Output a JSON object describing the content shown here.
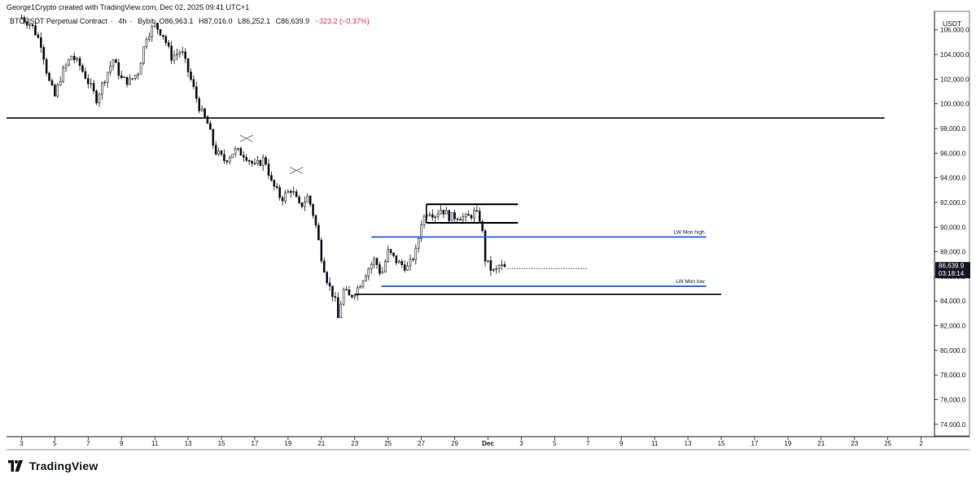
{
  "header": {
    "credit": "George1Crypto created with TradingView.com, Dec 02, 2025 09:41 UTC+1"
  },
  "symbol": {
    "name": "BTCUSDT Perpetual Contract",
    "interval": "4h",
    "exchange": "Bybit",
    "open": "O86,963.1",
    "high": "H87,016.0",
    "low": "L86,252.1",
    "close": "C86,639.9",
    "change": "−323.2 (−0.37%)",
    "change_color": "#f23645"
  },
  "brand": {
    "name": "TradingView"
  },
  "chart_data": {
    "type": "candlestick",
    "currency": "USDT",
    "y_ticks": [
      "106,000.0",
      "104,000.0",
      "102,000.0",
      "100,000.0",
      "98,000.0",
      "96,000.0",
      "94,000.0",
      "92,000.0",
      "90,000.0",
      "88,000.0",
      "86,000.0",
      "84,000.0",
      "82,000.0",
      "80,000.0",
      "78,000.0",
      "76,000.0",
      "74,000.0"
    ],
    "ylim": [
      73000,
      107500
    ],
    "x_ticks": [
      {
        "day": 3,
        "label": "3"
      },
      {
        "day": 5,
        "label": "5"
      },
      {
        "day": 7,
        "label": "7"
      },
      {
        "day": 9,
        "label": "9"
      },
      {
        "day": 11,
        "label": "11"
      },
      {
        "day": 13,
        "label": "13"
      },
      {
        "day": 15,
        "label": "15"
      },
      {
        "day": 17,
        "label": "17"
      },
      {
        "day": 19,
        "label": "19"
      },
      {
        "day": 21,
        "label": "21"
      },
      {
        "day": 23,
        "label": "23"
      },
      {
        "day": 25,
        "label": "25"
      },
      {
        "day": 27,
        "label": "27"
      },
      {
        "day": 29,
        "label": "29"
      },
      {
        "day": 31,
        "label": "Dec"
      },
      {
        "day": 33,
        "label": "3"
      },
      {
        "day": 35,
        "label": "5"
      },
      {
        "day": 37,
        "label": "7"
      },
      {
        "day": 39,
        "label": "9"
      },
      {
        "day": 41,
        "label": "11"
      },
      {
        "day": 43,
        "label": "13"
      },
      {
        "day": 45,
        "label": "15"
      },
      {
        "day": 47,
        "label": "17"
      },
      {
        "day": 49,
        "label": "19"
      },
      {
        "day": 51,
        "label": "21"
      },
      {
        "day": 53,
        "label": "23"
      },
      {
        "day": 55,
        "label": "25"
      },
      {
        "day": 57,
        "label": "2"
      }
    ],
    "xlim": [
      2.1,
      57.8
    ],
    "price_path": [
      [
        3.0,
        107000
      ],
      [
        3.6,
        106400
      ],
      [
        4.2,
        104800
      ],
      [
        4.6,
        102000
      ],
      [
        5.0,
        100600
      ],
      [
        5.4,
        102400
      ],
      [
        6.0,
        103900
      ],
      [
        6.5,
        103100
      ],
      [
        7.0,
        101800
      ],
      [
        7.5,
        100400
      ],
      [
        8.0,
        102100
      ],
      [
        8.5,
        103600
      ],
      [
        9.0,
        102000
      ],
      [
        9.5,
        101800
      ],
      [
        10.0,
        102600
      ],
      [
        10.5,
        105500
      ],
      [
        11.0,
        106400
      ],
      [
        11.5,
        105600
      ],
      [
        12.0,
        103800
      ],
      [
        12.6,
        104300
      ],
      [
        13.2,
        101800
      ],
      [
        13.7,
        99600
      ],
      [
        14.2,
        98300
      ],
      [
        14.6,
        96200
      ],
      [
        15.2,
        95400
      ],
      [
        15.8,
        96200
      ],
      [
        16.4,
        95900
      ],
      [
        17.0,
        94900
      ],
      [
        17.6,
        95600
      ],
      [
        18.0,
        93600
      ],
      [
        18.6,
        92300
      ],
      [
        19.2,
        93100
      ],
      [
        19.7,
        91600
      ],
      [
        20.2,
        92500
      ],
      [
        20.6,
        90600
      ],
      [
        21.0,
        87600
      ],
      [
        21.4,
        85400
      ],
      [
        21.8,
        84200
      ],
      [
        22.0,
        82600
      ],
      [
        22.3,
        84900
      ],
      [
        22.7,
        84300
      ],
      [
        23.2,
        85100
      ],
      [
        23.7,
        86400
      ],
      [
        24.2,
        87400
      ],
      [
        24.6,
        86100
      ],
      [
        25.0,
        88000
      ],
      [
        25.6,
        87100
      ],
      [
        26.2,
        86700
      ],
      [
        26.7,
        88100
      ],
      [
        27.0,
        90400
      ],
      [
        27.4,
        91400
      ],
      [
        27.8,
        91000
      ],
      [
        28.2,
        91500
      ],
      [
        28.7,
        90800
      ],
      [
        29.2,
        90900
      ],
      [
        29.7,
        90700
      ],
      [
        30.2,
        91200
      ],
      [
        30.6,
        90500
      ],
      [
        30.8,
        87500
      ],
      [
        31.1,
        86700
      ],
      [
        31.4,
        86300
      ],
      [
        31.7,
        86900
      ],
      [
        32.0,
        86640
      ]
    ],
    "lines": [
      {
        "type": "horizontal",
        "price": 98850,
        "color": "#000000",
        "from_day": 2.1,
        "to_day": 54.8
      },
      {
        "type": "horizontal",
        "price": 84550,
        "color": "#000000",
        "from_day": 23.0,
        "to_day": 45.0
      },
      {
        "type": "horizontal",
        "price": 89200,
        "color": "#2962ff",
        "from_day": 24.0,
        "to_day": 44.1,
        "label": "LW Mon high"
      },
      {
        "type": "horizontal",
        "price": 85200,
        "color": "#2962ff",
        "from_day": 24.6,
        "to_day": 44.1,
        "label": "LW Mon low"
      }
    ],
    "ranges": [
      {
        "top": 91850,
        "bottom": 90350,
        "from_day": 27.3,
        "to_day": 32.8
      }
    ],
    "crosses": [
      {
        "day": 16.5,
        "price": 97200
      },
      {
        "day": 19.5,
        "price": 94600
      }
    ],
    "last_price": {
      "price": 86639.9,
      "label": "86,639.9",
      "countdown": "03:18:14",
      "dotted_to_day": 37.0
    }
  }
}
